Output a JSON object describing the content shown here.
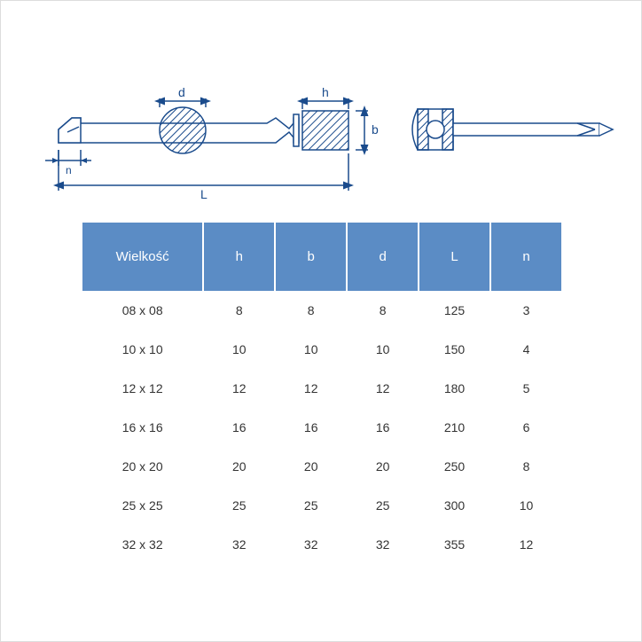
{
  "diagram": {
    "labels": {
      "d": "d",
      "h": "h",
      "b": "b",
      "n": "n",
      "L": "L"
    },
    "stroke": "#1a4b8c",
    "hatch": "#1a4b8c"
  },
  "table": {
    "header_bg": "#5b8cc5",
    "header_fg": "#ffffff",
    "columns": [
      "Wielkość",
      "h",
      "b",
      "d",
      "L",
      "n"
    ],
    "rows": [
      [
        "08 x 08",
        "8",
        "8",
        "8",
        "125",
        "3"
      ],
      [
        "10 x 10",
        "10",
        "10",
        "10",
        "150",
        "4"
      ],
      [
        "12 x 12",
        "12",
        "12",
        "12",
        "180",
        "5"
      ],
      [
        "16 x 16",
        "16",
        "16",
        "16",
        "210",
        "6"
      ],
      [
        "20 x 20",
        "20",
        "20",
        "20",
        "250",
        "8"
      ],
      [
        "25 x 25",
        "25",
        "25",
        "25",
        "300",
        "10"
      ],
      [
        "32 x 32",
        "32",
        "32",
        "32",
        "355",
        "12"
      ]
    ]
  }
}
